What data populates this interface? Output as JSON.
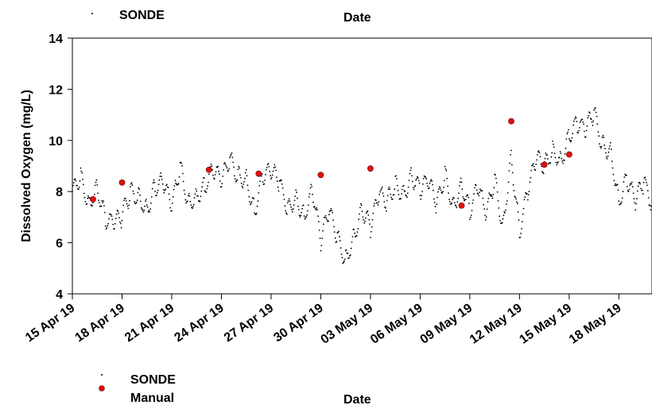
{
  "chart_data": {
    "type": "scatter",
    "title": "",
    "xlabel": "Date",
    "ylabel": "Dissolved Oxygen (mg/L)",
    "ylim": [
      4,
      14
    ],
    "yticks": [
      "4",
      "6",
      "8",
      "10",
      "12",
      "14"
    ],
    "xlim": [
      "2019-04-15",
      "2019-05-20"
    ],
    "xticks": [
      {
        "date": "2019-04-15",
        "label": "15 Apr 19"
      },
      {
        "date": "2019-04-18",
        "label": "18 Apr 19"
      },
      {
        "date": "2019-04-21",
        "label": "21 Apr 19"
      },
      {
        "date": "2019-04-24",
        "label": "24 Apr 19"
      },
      {
        "date": "2019-04-27",
        "label": "27 Apr 19"
      },
      {
        "date": "2019-04-30",
        "label": "30 Apr 19"
      },
      {
        "date": "2019-05-03",
        "label": "03 May 19"
      },
      {
        "date": "2019-05-06",
        "label": "06 May 19"
      },
      {
        "date": "2019-05-09",
        "label": "09 May 19"
      },
      {
        "date": "2019-05-12",
        "label": "12 May 19"
      },
      {
        "date": "2019-05-15",
        "label": "15 May 19"
      },
      {
        "date": "2019-05-18",
        "label": "18 May 19"
      }
    ],
    "grid": false,
    "legend_position": "bottom-left",
    "series": [
      {
        "name": "SONDE",
        "color": "#000000",
        "marker": "dot",
        "x": [
          "2019-04-15",
          "2019-04-15 12:00",
          "2019-04-16",
          "2019-04-16 12:00",
          "2019-04-17",
          "2019-04-17 12:00",
          "2019-04-18",
          "2019-04-18 12:00",
          "2019-04-19",
          "2019-04-19 12:00",
          "2019-04-20",
          "2019-04-20 12:00",
          "2019-04-21",
          "2019-04-21 12:00",
          "2019-04-22",
          "2019-04-22 12:00",
          "2019-04-23",
          "2019-04-23 12:00",
          "2019-04-24",
          "2019-04-24 12:00",
          "2019-04-25",
          "2019-04-25 12:00",
          "2019-04-26",
          "2019-04-26 12:00",
          "2019-04-27",
          "2019-04-27 12:00",
          "2019-04-28",
          "2019-04-28 12:00",
          "2019-04-29",
          "2019-04-29 12:00",
          "2019-04-30",
          "2019-04-30 12:00",
          "2019-05-01",
          "2019-05-01 12:00",
          "2019-05-02",
          "2019-05-02 12:00",
          "2019-05-03",
          "2019-05-03 12:00",
          "2019-05-04",
          "2019-05-04 12:00",
          "2019-05-05",
          "2019-05-05 12:00",
          "2019-05-06",
          "2019-05-06 12:00",
          "2019-05-07",
          "2019-05-07 12:00",
          "2019-05-08",
          "2019-05-08 12:00",
          "2019-05-09",
          "2019-05-09 12:00",
          "2019-05-10",
          "2019-05-10 12:00",
          "2019-05-11",
          "2019-05-11 12:00",
          "2019-05-12",
          "2019-05-12 12:00",
          "2019-05-13",
          "2019-05-13 12:00",
          "2019-05-14",
          "2019-05-14 12:00",
          "2019-05-15",
          "2019-05-15 12:00",
          "2019-05-16",
          "2019-05-16 12:00",
          "2019-05-17",
          "2019-05-17 12:00",
          "2019-05-18",
          "2019-05-18 12:00",
          "2019-05-19",
          "2019-05-19 12:00",
          "2019-05-20"
        ],
        "y": [
          8.0,
          8.6,
          7.5,
          8.2,
          6.9,
          6.8,
          7.0,
          8.0,
          7.8,
          7.3,
          8.2,
          8.4,
          7.4,
          9.0,
          7.5,
          7.8,
          8.2,
          8.9,
          8.4,
          9.3,
          8.6,
          8.5,
          7.2,
          8.6,
          8.8,
          8.4,
          7.3,
          7.8,
          7.0,
          8.1,
          6.1,
          7.3,
          6.2,
          5.3,
          6.3,
          7.3,
          6.6,
          7.9,
          7.6,
          8.3,
          7.9,
          8.6,
          8.1,
          8.4,
          7.5,
          8.7,
          7.4,
          8.3,
          7.2,
          8.2,
          7.1,
          8.5,
          6.6,
          9.4,
          6.4,
          8.0,
          9.3,
          9.0,
          9.6,
          9.2,
          10.2,
          10.7,
          10.4,
          11.1,
          9.8,
          9.6,
          7.6,
          8.5,
          7.6,
          8.4,
          7.5
        ]
      },
      {
        "name": "Manual",
        "color": "#e01010",
        "marker": "circle",
        "x": [
          "2019-04-16 06:00",
          "2019-04-18",
          "2019-04-23 06:00",
          "2019-04-26 06:00",
          "2019-04-30",
          "2019-05-03",
          "2019-05-08 12:00",
          "2019-05-11 12:00",
          "2019-05-13 12:00",
          "2019-05-15"
        ],
        "y": [
          7.7,
          8.35,
          8.85,
          8.7,
          8.65,
          8.9,
          7.45,
          10.75,
          9.05,
          9.45
        ]
      }
    ],
    "legend_top": [
      {
        "label": "SONDE",
        "marker": "dot"
      }
    ],
    "xlabel_top": "Date"
  }
}
